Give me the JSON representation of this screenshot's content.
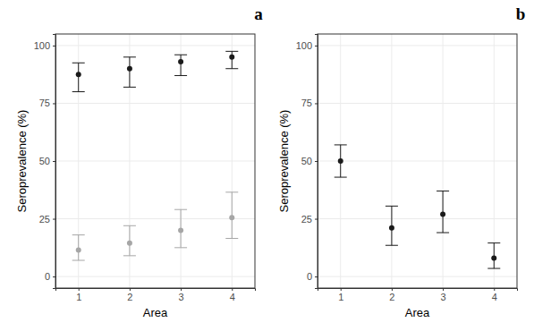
{
  "chart_data": [
    {
      "type": "scatter",
      "title": "a",
      "x_label": "Area",
      "y_label": "Seroprevalence (%)",
      "x": [
        1,
        2,
        3,
        4
      ],
      "xlim": [
        0.55,
        4.45
      ],
      "xticks": [
        1,
        2,
        3,
        4
      ],
      "ylim": [
        -5,
        105
      ],
      "yticks": [
        0,
        25,
        50,
        75,
        100
      ],
      "grid": true,
      "series": [
        {
          "color": "#1a1a1a",
          "marker": "circle",
          "values": [
            87.5,
            90,
            93,
            95
          ],
          "lower": [
            80,
            82,
            87,
            90
          ],
          "upper": [
            92.5,
            95,
            96,
            97.5
          ]
        },
        {
          "color": "#a6a6a6",
          "marker": "circle",
          "values": [
            11.5,
            14.5,
            20,
            25.5
          ],
          "lower": [
            7,
            9,
            12.5,
            16.5
          ],
          "upper": [
            18,
            22,
            29,
            36.5
          ]
        }
      ]
    },
    {
      "type": "scatter",
      "title": "b",
      "x_label": "Area",
      "y_label": "Seroprevalence (%)",
      "x": [
        1,
        2,
        3,
        4
      ],
      "xlim": [
        0.55,
        4.45
      ],
      "xticks": [
        1,
        2,
        3,
        4
      ],
      "ylim": [
        -5,
        105
      ],
      "yticks": [
        0,
        25,
        50,
        75,
        100
      ],
      "grid": true,
      "series": [
        {
          "color": "#1a1a1a",
          "marker": "circle",
          "values": [
            50,
            21,
            27,
            8
          ],
          "lower": [
            43,
            13.5,
            19,
            3.5
          ],
          "upper": [
            57,
            30.5,
            37,
            14.5
          ]
        }
      ]
    }
  ]
}
